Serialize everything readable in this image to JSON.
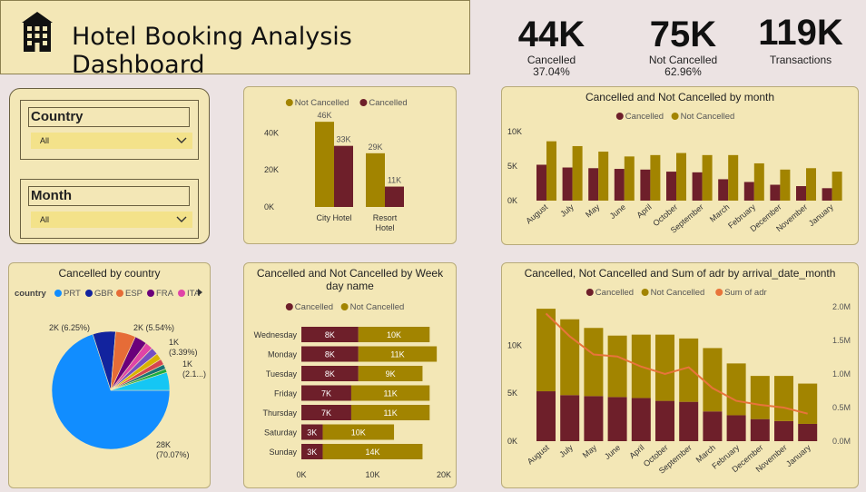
{
  "header": {
    "title": "Hotel Booking Analysis Dashboard",
    "icon": "hotel-building-icon"
  },
  "kpis": [
    {
      "value": "44K",
      "label": "Cancelled",
      "sub": "37.04%"
    },
    {
      "value": "75K",
      "label": "Not Cancelled",
      "sub": "62.96%"
    },
    {
      "value": "119K",
      "label": "Transactions",
      "sub": ""
    }
  ],
  "filters": {
    "country": {
      "label": "Country",
      "value": "All"
    },
    "month": {
      "label": "Month",
      "value": "All"
    }
  },
  "colors": {
    "cancelled": "#6e1f2a",
    "not_cancelled": "#a28400",
    "adr": "#e8743b",
    "panel": "#f3e7b6"
  },
  "chart_data": [
    {
      "id": "hotel",
      "type": "bar",
      "title": "",
      "categories": [
        "City Hotel",
        "Resort Hotel"
      ],
      "series": [
        {
          "name": "Not Cancelled",
          "values": [
            46000,
            29000
          ],
          "labels": [
            "46K",
            "29K"
          ]
        },
        {
          "name": "Cancelled",
          "values": [
            33000,
            11000
          ],
          "labels": [
            "33K",
            "11K"
          ]
        }
      ],
      "ylim": [
        0,
        50000
      ],
      "ticks": [
        0,
        20000,
        40000
      ],
      "tick_labels": [
        "0K",
        "20K",
        "40K"
      ],
      "legend": "top"
    },
    {
      "id": "month",
      "type": "bar",
      "title": "Cancelled and Not Cancelled by month",
      "categories": [
        "August",
        "July",
        "May",
        "June",
        "April",
        "October",
        "September",
        "March",
        "February",
        "December",
        "November",
        "January"
      ],
      "series": [
        {
          "name": "Cancelled",
          "values": [
            5200,
            4800,
            4700,
            4600,
            4500,
            4200,
            4100,
            3100,
            2700,
            2300,
            2100,
            1800
          ]
        },
        {
          "name": "Not Cancelled",
          "values": [
            8600,
            7900,
            7100,
            6400,
            6600,
            6900,
            6600,
            6600,
            5400,
            4500,
            4700,
            4200
          ]
        }
      ],
      "ylim": [
        0,
        10000
      ],
      "ticks": [
        0,
        5000,
        10000
      ],
      "tick_labels": [
        "0K",
        "5K",
        "10K"
      ],
      "legend": "top"
    },
    {
      "id": "country",
      "type": "pie",
      "title": "Cancelled by country",
      "legend_title": "country",
      "legend": [
        "PRT",
        "GBR",
        "ESP",
        "FRA",
        "ITA"
      ],
      "legend_colors": [
        "#118dff",
        "#12239e",
        "#e66c37",
        "#6b007b",
        "#e044a7"
      ],
      "slices": [
        {
          "name": "PRT",
          "value": 70.07,
          "color": "#118dff",
          "label": "28K\n(70.07%)"
        },
        {
          "name": "GBR",
          "value": 6.25,
          "color": "#12239e",
          "label": "2K (6.25%)"
        },
        {
          "name": "ESP",
          "value": 5.54,
          "color": "#e66c37",
          "label": "2K (5.54%)"
        },
        {
          "name": "FRA",
          "value": 3.39,
          "color": "#6b007b",
          "label": "1K\n(3.39%)"
        },
        {
          "name": "ITA",
          "value": 2.1,
          "color": "#e044a7",
          "label": "1K\n(2.1...)"
        },
        {
          "name": "s6",
          "value": 2.0,
          "color": "#744ec2",
          "label": ""
        },
        {
          "name": "s7",
          "value": 1.8,
          "color": "#d9b300",
          "label": ""
        },
        {
          "name": "s8",
          "value": 1.6,
          "color": "#d64550",
          "label": ""
        },
        {
          "name": "s9",
          "value": 1.3,
          "color": "#197278",
          "label": ""
        },
        {
          "name": "s10",
          "value": 1.0,
          "color": "#1aab40",
          "label": ""
        },
        {
          "name": "s11",
          "value": 4.94,
          "color": "#15c6f4",
          "label": ""
        }
      ]
    },
    {
      "id": "weekday",
      "type": "bar",
      "title": "Cancelled and Not Cancelled by Week day name",
      "categories": [
        "Wednesday",
        "Monday",
        "Tuesday",
        "Friday",
        "Thursday",
        "Saturday",
        "Sunday"
      ],
      "series": [
        {
          "name": "Cancelled",
          "values": [
            8000,
            8000,
            8000,
            7000,
            7000,
            3000,
            3000
          ],
          "labels": [
            "8K",
            "8K",
            "8K",
            "7K",
            "7K",
            "3K",
            "3K"
          ]
        },
        {
          "name": "Not Cancelled",
          "values": [
            10000,
            11000,
            9000,
            11000,
            11000,
            10000,
            14000
          ],
          "labels": [
            "10K",
            "11K",
            "9K",
            "11K",
            "11K",
            "10K",
            "14K"
          ]
        }
      ],
      "xlim": [
        0,
        20000
      ],
      "ticks": [
        0,
        10000,
        20000
      ],
      "tick_labels": [
        "0K",
        "10K",
        "20K"
      ],
      "legend": "top"
    },
    {
      "id": "adr",
      "type": "bar",
      "title": "Cancelled, Not Cancelled and Sum of adr by arrival_date_month",
      "categories": [
        "August",
        "July",
        "May",
        "June",
        "April",
        "October",
        "September",
        "March",
        "February",
        "December",
        "November",
        "January"
      ],
      "series": [
        {
          "name": "Cancelled",
          "values": [
            5200,
            4800,
            4700,
            4600,
            4500,
            4200,
            4100,
            3100,
            2700,
            2300,
            2100,
            1800
          ]
        },
        {
          "name": "Not Cancelled",
          "values": [
            8600,
            7900,
            7100,
            6400,
            6600,
            6900,
            6600,
            6600,
            5400,
            4500,
            4700,
            4200
          ]
        },
        {
          "name": "Sum of adr",
          "values": [
            1900000,
            1560000,
            1290000,
            1260000,
            1110000,
            1000000,
            1100000,
            790000,
            600000,
            540000,
            500000,
            410000
          ]
        }
      ],
      "ylim": [
        0,
        14000
      ],
      "ticks": [
        0,
        5000,
        10000
      ],
      "tick_labels": [
        "0K",
        "5K",
        "10K"
      ],
      "y2lim": [
        0,
        2000000
      ],
      "ticks2": [
        0,
        500000,
        1000000,
        1500000,
        2000000
      ],
      "tick_labels2": [
        "0.0M",
        "0.5M",
        "1.0M",
        "1.5M",
        "2.0M"
      ],
      "legend": "top"
    }
  ]
}
